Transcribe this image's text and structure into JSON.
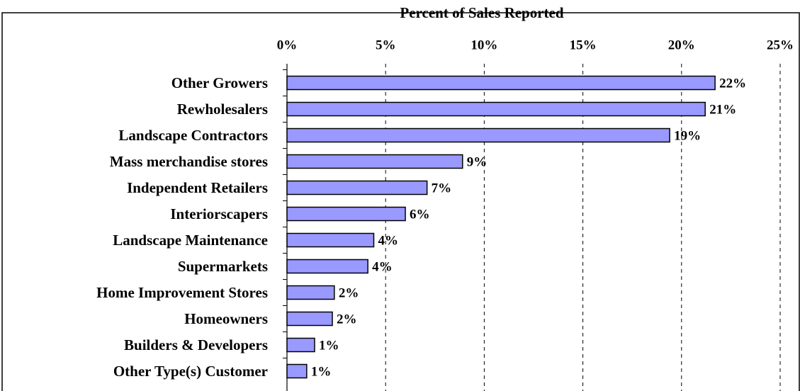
{
  "chart_data": {
    "type": "hbar",
    "x_label": "Percent of Sales Reported",
    "categories": [
      "Other Growers",
      "Rewholesalers",
      "Landscape Contractors",
      "Mass merchandise stores",
      "Independent Retailers",
      "Interiorscapers",
      "Landscape Maintenance",
      "Supermarkets",
      "Home Improvement Stores",
      "Homeowners",
      "Builders & Developers",
      "Other Type(s) Customer"
    ],
    "values": [
      21.7,
      21.2,
      19.4,
      8.9,
      7.1,
      6.0,
      4.4,
      4.1,
      2.4,
      2.3,
      1.4,
      1.0
    ],
    "value_labels": [
      "22%",
      "21%",
      "19%",
      "9%",
      "7%",
      "6%",
      "4%",
      "4%",
      "2%",
      "2%",
      "1%",
      "1%"
    ],
    "color": "#9999ff",
    "xlim": [
      0,
      25
    ],
    "xticks": [
      {
        "value": 0,
        "label": "0%"
      },
      {
        "value": 5,
        "label": "5%"
      },
      {
        "value": 10,
        "label": "10%"
      },
      {
        "value": 15,
        "label": "15%"
      },
      {
        "value": 20,
        "label": "20%"
      },
      {
        "value": 25,
        "label": "25%"
      }
    ],
    "grid": true
  }
}
